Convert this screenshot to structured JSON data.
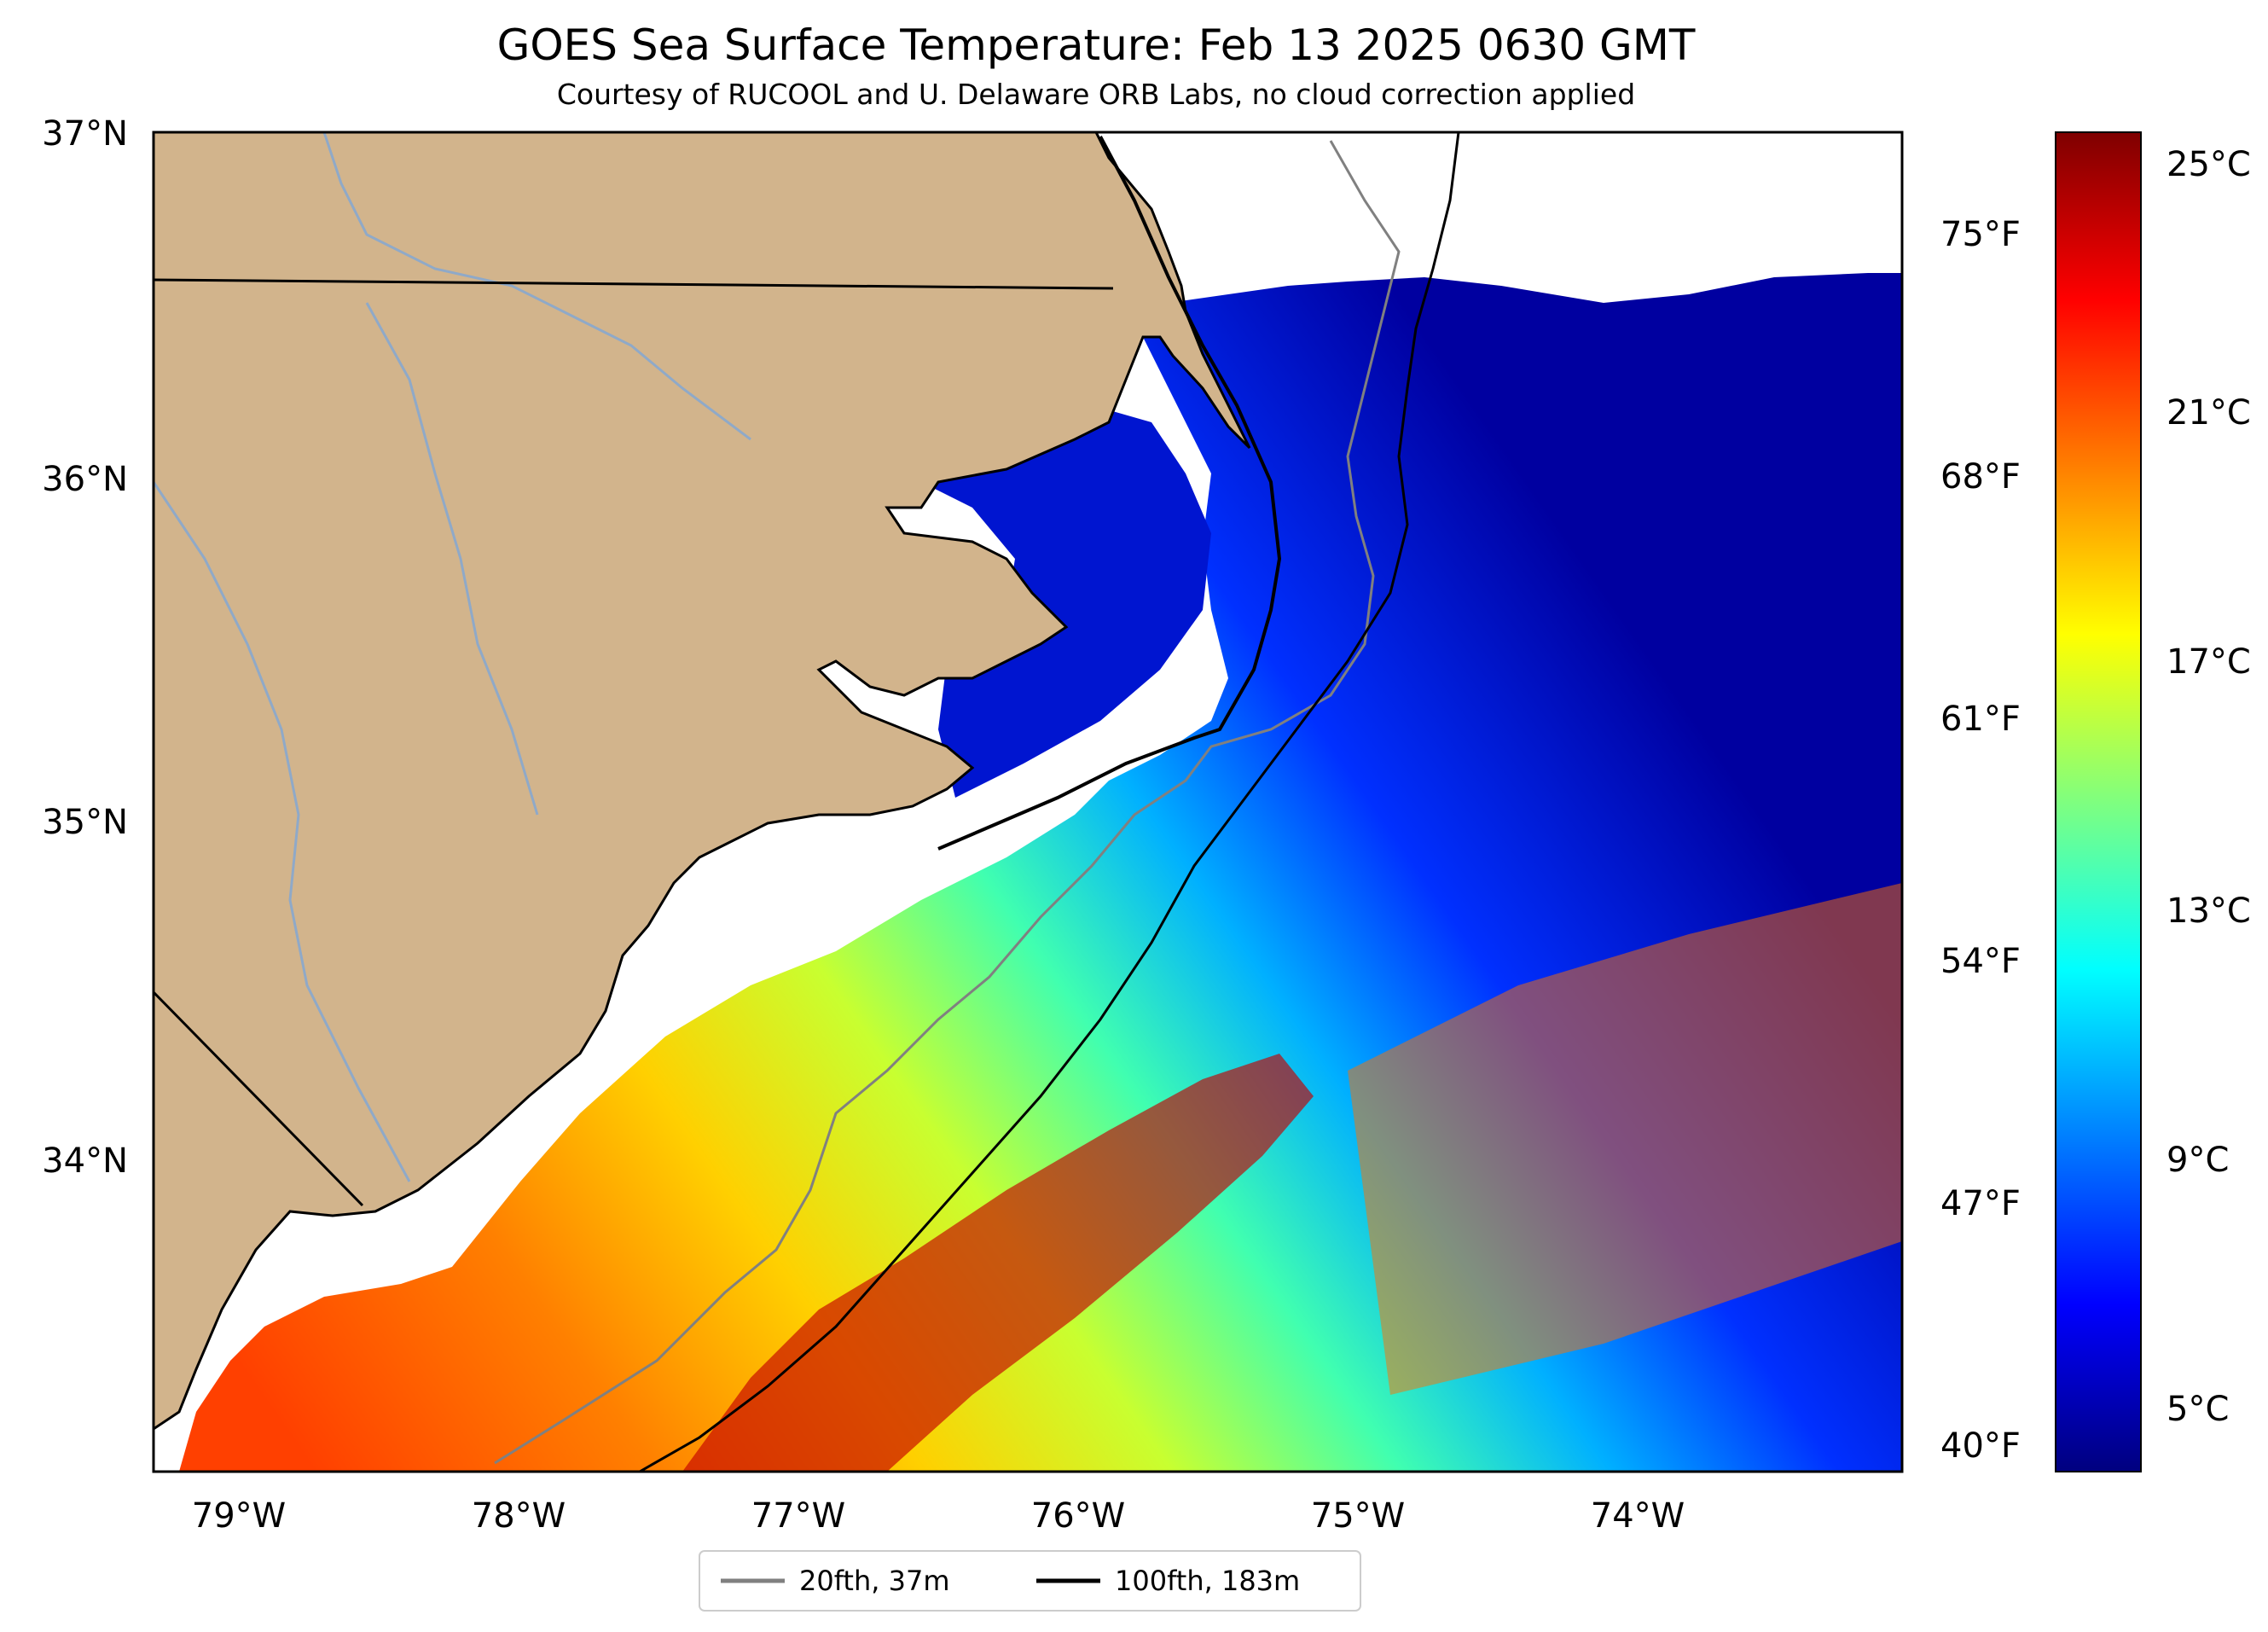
{
  "map": {
    "title": "GOES Sea Surface Temperature: Feb 13 2025 0630 GMT",
    "subtitle": "Courtesy of RUCOOL and U. Delaware ORB Labs, no cloud correction applied",
    "lat_ticks": [
      "37°N",
      "36°N",
      "35°N",
      "34°N"
    ],
    "lon_ticks": [
      "79°W",
      "78°W",
      "77°W",
      "76°W",
      "75°W",
      "74°W"
    ],
    "fahrenheit_ticks": [
      "75°F",
      "68°F",
      "61°F",
      "54°F",
      "47°F",
      "40°F"
    ],
    "colorbar": {
      "ticks": [
        "25°C",
        "21°C",
        "17°C",
        "13°C",
        "9°C",
        "5°C"
      ],
      "colormap": "jet",
      "colors": [
        "#00007f",
        "#0000ff",
        "#007fff",
        "#00ffff",
        "#7fff7f",
        "#ffff00",
        "#ff7f00",
        "#ff0000",
        "#7f0000"
      ]
    },
    "legend": {
      "items": [
        {
          "label": "20fth, 37m",
          "color": "#808080"
        },
        {
          "label": "100fth, 183m",
          "color": "#000000"
        }
      ]
    },
    "land_color": "#d2b48c",
    "river_color": "#8fa9c8"
  }
}
